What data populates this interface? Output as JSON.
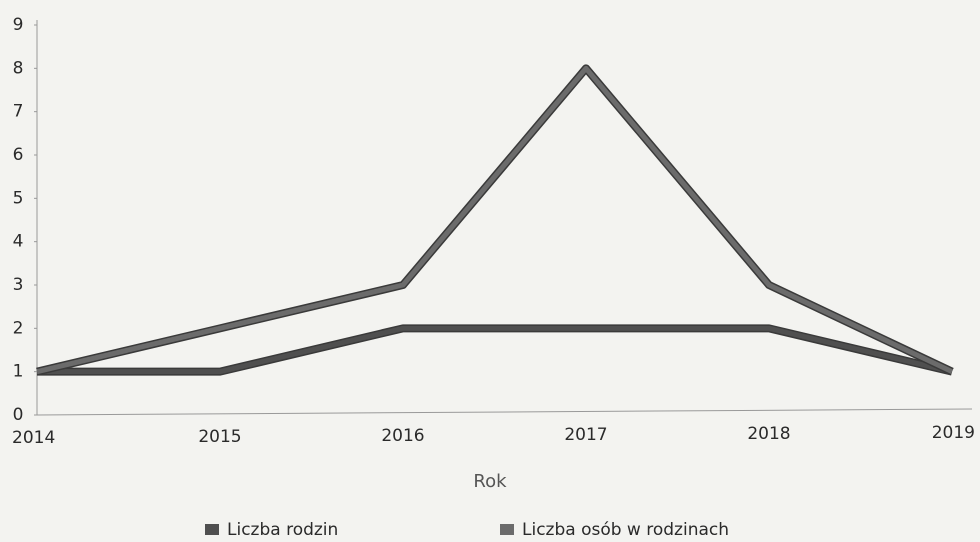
{
  "chart_data": {
    "type": "line",
    "categories": [
      "2014",
      "2015",
      "2016",
      "2017",
      "2018",
      "2019"
    ],
    "x_label": "Rok",
    "series": [
      {
        "name": "Liczba rodzin",
        "color": "#4f4f4f",
        "values": [
          1,
          1,
          2,
          2,
          2,
          1
        ]
      },
      {
        "name": "Liczba osób w rodzinach",
        "color": "#6b6b6b",
        "values": [
          1,
          2,
          3,
          8,
          3,
          1
        ]
      }
    ],
    "ylim": [
      0,
      9
    ],
    "yticks": [
      0,
      1,
      2,
      3,
      4,
      5,
      6,
      7,
      8,
      9
    ],
    "grid": false,
    "legend": "bottom"
  }
}
